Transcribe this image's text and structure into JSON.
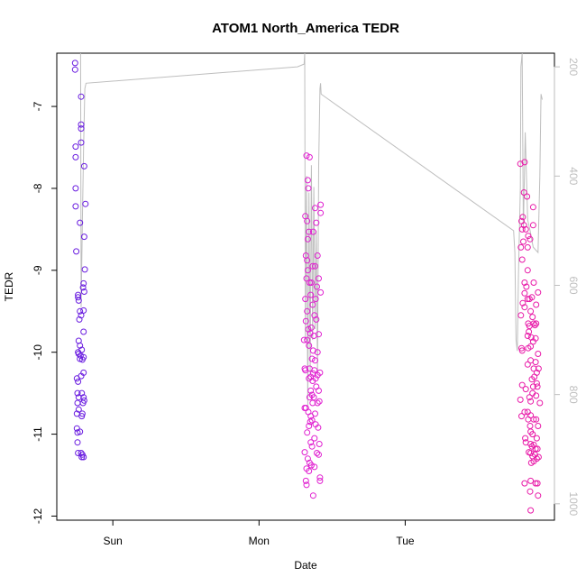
{
  "chart_data": {
    "type": "scatter",
    "title": "ATOM1 North_America TEDR",
    "xlabel": "Date",
    "ylabel": "TEDR",
    "x_tick_labels": [
      "Sun",
      "Mon",
      "Tue"
    ],
    "x_ticks_hours": [
      24,
      48,
      72
    ],
    "xlim_hours": [
      14.8,
      96.5
    ],
    "y_ticks": [
      -12,
      -11,
      -10,
      -9,
      -8,
      -7
    ],
    "ylim": [
      -12.05,
      -6.35
    ],
    "y2_ticks": [
      200,
      400,
      600,
      800,
      1000
    ],
    "y2lim": [
      1030,
      175
    ],
    "colors": {
      "cluster1": "#6a1de0",
      "cluster2": "#e020d0",
      "cluster3": "#e81aa8",
      "secondary_line": "#bebebe"
    },
    "series": [
      {
        "cluster": 1,
        "color_key": "cluster1",
        "points": [
          [
            17.8,
            -6.47
          ],
          [
            17.8,
            -6.55
          ],
          [
            17.9,
            -7.49
          ],
          [
            17.9,
            -7.62
          ],
          [
            17.9,
            -8.0
          ],
          [
            17.9,
            -8.22
          ],
          [
            18.0,
            -8.77
          ],
          [
            18.3,
            -9.3
          ],
          [
            18.3,
            -9.33
          ],
          [
            18.4,
            -9.37
          ],
          [
            18.6,
            -8.42
          ],
          [
            18.8,
            -6.88
          ],
          [
            18.8,
            -7.22
          ],
          [
            18.8,
            -7.27
          ],
          [
            18.8,
            -7.44
          ],
          [
            19.3,
            -7.73
          ],
          [
            19.5,
            -8.19
          ],
          [
            19.3,
            -8.59
          ],
          [
            19.4,
            -8.99
          ],
          [
            19.2,
            -9.16
          ],
          [
            19.1,
            -9.21
          ],
          [
            19.3,
            -9.26
          ],
          [
            18.6,
            -9.5
          ],
          [
            18.8,
            -9.55
          ],
          [
            19.2,
            -9.49
          ],
          [
            18.5,
            -9.6
          ],
          [
            19.2,
            -9.75
          ],
          [
            18.4,
            -9.86
          ],
          [
            18.6,
            -9.92
          ],
          [
            18.9,
            -9.97
          ],
          [
            18.3,
            -10.0
          ],
          [
            18.4,
            -10.02
          ],
          [
            18.6,
            -10.08
          ],
          [
            18.7,
            -10.04
          ],
          [
            18.1,
            -10.32
          ],
          [
            18.3,
            -10.36
          ],
          [
            18.8,
            -10.29
          ],
          [
            19.2,
            -10.25
          ],
          [
            19.0,
            -10.09
          ],
          [
            19.2,
            -10.06
          ],
          [
            18.2,
            -10.5
          ],
          [
            18.4,
            -10.55
          ],
          [
            18.2,
            -10.62
          ],
          [
            18.4,
            -10.7
          ],
          [
            18.1,
            -10.75
          ],
          [
            18.9,
            -10.5
          ],
          [
            19.2,
            -10.55
          ],
          [
            19.1,
            -10.62
          ],
          [
            18.9,
            -10.78
          ],
          [
            19.0,
            -10.75
          ],
          [
            19.3,
            -10.59
          ],
          [
            18.1,
            -10.93
          ],
          [
            18.2,
            -10.98
          ],
          [
            18.6,
            -10.97
          ],
          [
            18.2,
            -11.1
          ],
          [
            18.3,
            -11.23
          ],
          [
            18.8,
            -11.23
          ],
          [
            18.9,
            -11.28
          ],
          [
            19.2,
            -11.28
          ],
          [
            19.0,
            -11.25
          ]
        ]
      },
      {
        "cluster": 2,
        "color_key": "cluster2",
        "points": [
          [
            55.6,
            -8.34
          ],
          [
            55.8,
            -7.6
          ],
          [
            56.0,
            -7.9
          ],
          [
            56.1,
            -8.0
          ],
          [
            56.3,
            -7.62
          ],
          [
            55.9,
            -8.4
          ],
          [
            56.2,
            -8.53
          ],
          [
            56.0,
            -8.62
          ],
          [
            57.2,
            -8.24
          ],
          [
            57.4,
            -8.42
          ],
          [
            56.9,
            -8.53
          ],
          [
            58.1,
            -8.2
          ],
          [
            58.1,
            -8.3
          ],
          [
            55.7,
            -8.82
          ],
          [
            55.9,
            -8.88
          ],
          [
            56.0,
            -9.0
          ],
          [
            55.8,
            -9.1
          ],
          [
            56.3,
            -9.15
          ],
          [
            56.8,
            -8.95
          ],
          [
            57.2,
            -8.95
          ],
          [
            57.6,
            -8.82
          ],
          [
            57.8,
            -9.1
          ],
          [
            56.6,
            -9.15
          ],
          [
            57.5,
            -9.2
          ],
          [
            58.1,
            -9.27
          ],
          [
            55.6,
            -9.35
          ],
          [
            55.9,
            -9.5
          ],
          [
            56.5,
            -9.3
          ],
          [
            57.3,
            -9.35
          ],
          [
            56.8,
            -9.42
          ],
          [
            55.7,
            -9.62
          ],
          [
            56.1,
            -9.72
          ],
          [
            56.6,
            -9.7
          ],
          [
            57.1,
            -9.55
          ],
          [
            57.4,
            -9.6
          ],
          [
            55.4,
            -9.85
          ],
          [
            55.9,
            -9.85
          ],
          [
            56.4,
            -9.77
          ],
          [
            57.0,
            -9.8
          ],
          [
            57.8,
            -9.78
          ],
          [
            56.2,
            -9.92
          ],
          [
            56.9,
            -9.98
          ],
          [
            56.7,
            -10.08
          ],
          [
            57.2,
            -10.1
          ],
          [
            57.6,
            -10.0
          ],
          [
            55.5,
            -10.2
          ],
          [
            55.6,
            -10.22
          ],
          [
            56.3,
            -10.2
          ],
          [
            57.1,
            -10.22
          ],
          [
            56.9,
            -10.26
          ],
          [
            57.6,
            -10.28
          ],
          [
            58.0,
            -10.25
          ],
          [
            56.2,
            -10.32
          ],
          [
            56.5,
            -10.3
          ],
          [
            56.8,
            -10.35
          ],
          [
            57.3,
            -10.32
          ],
          [
            56.3,
            -10.55
          ],
          [
            56.5,
            -10.47
          ],
          [
            56.7,
            -10.52
          ],
          [
            57.4,
            -10.42
          ],
          [
            57.8,
            -10.47
          ],
          [
            56.8,
            -10.62
          ],
          [
            57.0,
            -10.55
          ],
          [
            55.7,
            -10.68
          ],
          [
            55.5,
            -10.68
          ],
          [
            56.1,
            -10.73
          ],
          [
            56.5,
            -10.78
          ],
          [
            57.2,
            -10.75
          ],
          [
            57.6,
            -10.62
          ],
          [
            57.9,
            -10.6
          ],
          [
            56.2,
            -10.9
          ],
          [
            56.4,
            -10.85
          ],
          [
            56.7,
            -10.83
          ],
          [
            57.3,
            -10.88
          ],
          [
            57.7,
            -10.92
          ],
          [
            55.9,
            -10.98
          ],
          [
            57.1,
            -11.05
          ],
          [
            56.5,
            -11.1
          ],
          [
            56.7,
            -11.15
          ],
          [
            57.9,
            -11.12
          ],
          [
            55.5,
            -11.22
          ],
          [
            56.0,
            -11.3
          ],
          [
            56.3,
            -11.35
          ],
          [
            56.6,
            -11.38
          ],
          [
            57.5,
            -11.23
          ],
          [
            57.8,
            -11.25
          ],
          [
            55.8,
            -11.42
          ],
          [
            56.2,
            -11.45
          ],
          [
            57.1,
            -11.4
          ],
          [
            55.7,
            -11.57
          ],
          [
            55.8,
            -11.62
          ],
          [
            58.0,
            -11.53
          ],
          [
            58.0,
            -11.57
          ],
          [
            56.9,
            -11.75
          ]
        ]
      },
      {
        "cluster": 3,
        "color_key": "cluster3",
        "points": [
          [
            90.9,
            -7.7
          ],
          [
            91.6,
            -7.68
          ],
          [
            91.5,
            -8.05
          ],
          [
            92.0,
            -8.1
          ],
          [
            93.0,
            -8.23
          ],
          [
            91.1,
            -8.4
          ],
          [
            91.3,
            -8.35
          ],
          [
            91.5,
            -8.45
          ],
          [
            91.8,
            -8.5
          ],
          [
            92.2,
            -8.58
          ],
          [
            92.5,
            -8.62
          ],
          [
            93.0,
            -8.45
          ],
          [
            91.2,
            -8.5
          ],
          [
            91.4,
            -8.65
          ],
          [
            91.0,
            -8.72
          ],
          [
            92.1,
            -8.72
          ],
          [
            91.2,
            -8.87
          ],
          [
            92.1,
            -9.0
          ],
          [
            91.6,
            -9.15
          ],
          [
            91.9,
            -9.2
          ],
          [
            93.1,
            -9.15
          ],
          [
            91.6,
            -9.28
          ],
          [
            92.1,
            -9.35
          ],
          [
            92.4,
            -9.35
          ],
          [
            91.3,
            -9.4
          ],
          [
            91.6,
            -9.45
          ],
          [
            92.8,
            -9.33
          ],
          [
            93.8,
            -9.27
          ],
          [
            93.5,
            -9.42
          ],
          [
            92.6,
            -9.5
          ],
          [
            92.9,
            -9.57
          ],
          [
            91.0,
            -9.55
          ],
          [
            92.2,
            -9.65
          ],
          [
            92.4,
            -9.68
          ],
          [
            93.1,
            -9.65
          ],
          [
            93.3,
            -9.67
          ],
          [
            93.5,
            -9.65
          ],
          [
            92.3,
            -9.75
          ],
          [
            92.1,
            -9.8
          ],
          [
            92.7,
            -9.82
          ],
          [
            93.0,
            -9.87
          ],
          [
            93.4,
            -9.83
          ],
          [
            91.1,
            -9.95
          ],
          [
            91.2,
            -9.98
          ],
          [
            92.6,
            -9.93
          ],
          [
            92.2,
            -9.95
          ],
          [
            93.8,
            -10.02
          ],
          [
            92.6,
            -10.1
          ],
          [
            93.4,
            -10.12
          ],
          [
            92.1,
            -10.15
          ],
          [
            93.1,
            -10.2
          ],
          [
            93.6,
            -10.25
          ],
          [
            93.2,
            -10.3
          ],
          [
            93.9,
            -10.2
          ],
          [
            93.6,
            -10.38
          ],
          [
            92.8,
            -10.33
          ],
          [
            91.2,
            -10.4
          ],
          [
            91.8,
            -10.45
          ],
          [
            93.0,
            -10.42
          ],
          [
            93.7,
            -10.42
          ],
          [
            92.4,
            -10.55
          ],
          [
            92.9,
            -10.5
          ],
          [
            93.5,
            -10.53
          ],
          [
            94.1,
            -10.62
          ],
          [
            90.9,
            -10.58
          ],
          [
            92.6,
            -10.6
          ],
          [
            91.1,
            -10.78
          ],
          [
            91.6,
            -10.73
          ],
          [
            92.1,
            -10.73
          ],
          [
            92.2,
            -10.82
          ],
          [
            92.6,
            -10.77
          ],
          [
            93.1,
            -10.82
          ],
          [
            93.5,
            -10.82
          ],
          [
            93.8,
            -10.9
          ],
          [
            93.6,
            -11.05
          ],
          [
            92.5,
            -10.9
          ],
          [
            92.6,
            -10.97
          ],
          [
            92.9,
            -11.0
          ],
          [
            91.7,
            -11.05
          ],
          [
            91.8,
            -11.1
          ],
          [
            92.6,
            -11.12
          ],
          [
            92.8,
            -11.15
          ],
          [
            93.1,
            -11.13
          ],
          [
            93.4,
            -11.18
          ],
          [
            93.7,
            -11.18
          ],
          [
            92.3,
            -11.22
          ],
          [
            92.6,
            -11.23
          ],
          [
            92.9,
            -11.27
          ],
          [
            93.3,
            -11.25
          ],
          [
            93.6,
            -11.3
          ],
          [
            93.9,
            -11.28
          ],
          [
            92.7,
            -11.35
          ],
          [
            93.1,
            -11.33
          ],
          [
            91.6,
            -11.6
          ],
          [
            92.6,
            -11.57
          ],
          [
            93.4,
            -11.6
          ],
          [
            93.7,
            -11.6
          ],
          [
            92.5,
            -11.7
          ],
          [
            93.8,
            -11.75
          ],
          [
            92.6,
            -11.93
          ]
        ]
      }
    ],
    "secondary_line": [
      [
        18.7,
        175
      ],
      [
        18.8,
        640
      ],
      [
        19.0,
        480
      ],
      [
        19.2,
        350
      ],
      [
        19.4,
        240
      ],
      [
        19.6,
        230
      ],
      [
        54.3,
        200
      ],
      [
        55.4,
        195
      ],
      [
        55.5,
        175
      ],
      [
        55.6,
        700
      ],
      [
        55.8,
        400
      ],
      [
        56.0,
        820
      ],
      [
        56.2,
        430
      ],
      [
        56.4,
        760
      ],
      [
        56.6,
        380
      ],
      [
        56.8,
        700
      ],
      [
        57.0,
        420
      ],
      [
        57.2,
        680
      ],
      [
        57.4,
        500
      ],
      [
        57.6,
        760
      ],
      [
        57.8,
        380
      ],
      [
        58.0,
        240
      ],
      [
        58.1,
        230
      ],
      [
        58.2,
        250
      ],
      [
        89.8,
        500
      ],
      [
        90.0,
        540
      ],
      [
        90.2,
        700
      ],
      [
        90.4,
        720
      ],
      [
        90.6,
        580
      ],
      [
        90.9,
        420
      ],
      [
        91.0,
        200
      ],
      [
        91.2,
        175
      ],
      [
        91.4,
        500
      ],
      [
        91.7,
        320
      ],
      [
        92.1,
        480
      ],
      [
        92.5,
        500
      ],
      [
        93.0,
        530
      ],
      [
        93.8,
        540
      ],
      [
        94.1,
        400
      ],
      [
        94.3,
        250
      ],
      [
        94.5,
        260
      ]
    ]
  }
}
